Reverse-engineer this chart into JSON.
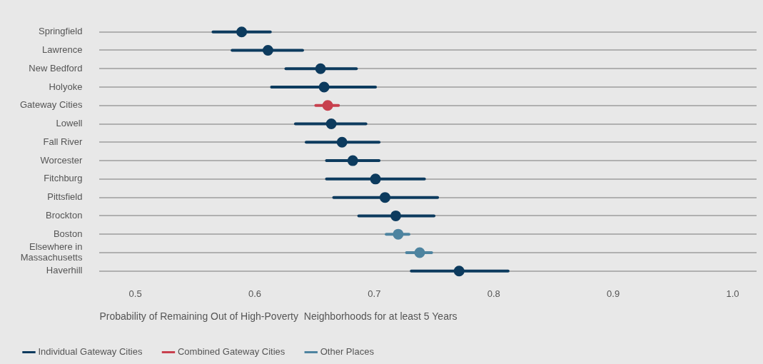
{
  "chart_data": {
    "type": "scatter",
    "orientation": "horizontal",
    "xlabel": "Probability of Remaining Out of High-Poverty  Neighborhoods for at least 5 Years",
    "categories": [
      "Springfield",
      "Lawrence",
      "New Bedford",
      "Holyoke",
      "Gateway Cities",
      "Lowell",
      "Fall River",
      "Worcester",
      "Fitchburg",
      "Pittsfield",
      "Brockton",
      "Boston",
      "Elsewhere in Massachusetts",
      "Haverhill"
    ],
    "series": [
      {
        "name": "Individual Gateway Cities",
        "color": "#0d3b5e",
        "values": [
          0.589,
          0.611,
          0.655,
          0.658,
          null,
          0.664,
          0.673,
          0.682,
          0.701,
          0.709,
          0.718,
          null,
          null,
          0.771
        ],
        "errors": [
          [
            0.565,
            0.613
          ],
          [
            0.581,
            0.64
          ],
          [
            0.626,
            0.685
          ],
          [
            0.614,
            0.701
          ],
          null,
          [
            0.634,
            0.693
          ],
          [
            0.643,
            0.704
          ],
          [
            0.66,
            0.704
          ],
          [
            0.66,
            0.742
          ],
          [
            0.666,
            0.753
          ],
          [
            0.687,
            0.75
          ],
          null,
          null,
          [
            0.731,
            0.812
          ]
        ]
      },
      {
        "name": "Combined Gateway Cities",
        "color": "#c8404e",
        "values": [
          null,
          null,
          null,
          null,
          0.661,
          null,
          null,
          null,
          null,
          null,
          null,
          null,
          null,
          null
        ],
        "errors": [
          null,
          null,
          null,
          null,
          [
            0.651,
            0.67
          ],
          null,
          null,
          null,
          null,
          null,
          null,
          null,
          null,
          null
        ]
      },
      {
        "name": "Other Places",
        "color": "#4e84a0",
        "values": [
          null,
          null,
          null,
          null,
          null,
          null,
          null,
          null,
          null,
          null,
          null,
          0.72,
          0.738,
          null
        ],
        "errors": [
          null,
          null,
          null,
          null,
          null,
          null,
          null,
          null,
          null,
          null,
          null,
          [
            0.71,
            0.729
          ],
          [
            0.727,
            0.748
          ],
          null
        ]
      }
    ],
    "xlim": [
      0.47,
      1.02
    ],
    "xticks": [
      0.5,
      0.6,
      0.7,
      0.8,
      0.9,
      {
        "value": 1,
        "label": "1.0"
      }
    ],
    "grid": "y",
    "legend": "bottom left",
    "marker": "circle"
  }
}
